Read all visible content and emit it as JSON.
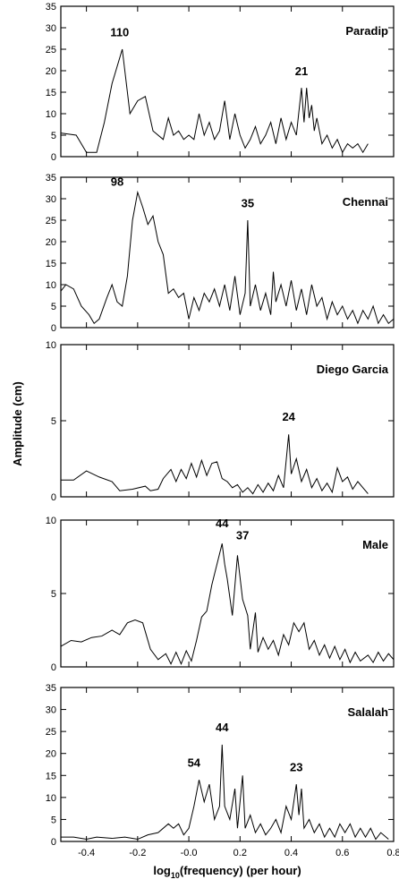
{
  "chart_data": [
    {
      "type": "line",
      "title": "Paradip",
      "color": "#000000",
      "xlim": [
        -0.5,
        0.8
      ],
      "ylim": [
        0,
        35
      ],
      "xticks": [
        -0.4,
        -0.2,
        0,
        0.2,
        0.4,
        0.6,
        0.8
      ],
      "yticks": [
        0,
        5,
        10,
        15,
        20,
        25,
        30,
        35
      ],
      "annotations": [
        {
          "text": "110",
          "x": -0.27,
          "y": 28
        },
        {
          "text": "21",
          "x": 0.44,
          "y": 19
        }
      ],
      "x": [
        -0.5,
        -0.44,
        -0.4,
        -0.36,
        -0.33,
        -0.3,
        -0.26,
        -0.23,
        -0.2,
        -0.17,
        -0.14,
        -0.1,
        -0.08,
        -0.06,
        -0.04,
        -0.02,
        0,
        0.02,
        0.04,
        0.06,
        0.08,
        0.1,
        0.12,
        0.14,
        0.16,
        0.18,
        0.2,
        0.22,
        0.24,
        0.26,
        0.28,
        0.3,
        0.32,
        0.34,
        0.36,
        0.38,
        0.4,
        0.42,
        0.44,
        0.45,
        0.46,
        0.47,
        0.48,
        0.49,
        0.5,
        0.52,
        0.54,
        0.56,
        0.58,
        0.6,
        0.62,
        0.64,
        0.66,
        0.68,
        0.7
      ],
      "values": [
        5.5,
        5,
        1,
        1,
        8,
        17,
        25,
        10,
        13,
        14,
        6,
        4,
        9,
        5,
        6,
        4,
        5,
        4,
        10,
        5,
        8,
        4,
        6,
        13,
        4,
        10,
        5,
        2,
        4,
        7,
        3,
        5,
        8,
        3,
        9,
        4,
        8,
        5,
        16,
        8,
        16,
        9,
        12,
        6,
        9,
        3,
        5,
        2,
        4,
        1,
        3,
        2,
        3,
        1,
        3
      ]
    },
    {
      "type": "line",
      "title": "Chennai",
      "color": "#000000",
      "xlim": [
        -0.5,
        0.8
      ],
      "ylim": [
        0,
        35
      ],
      "xticks": [
        -0.4,
        -0.2,
        0,
        0.2,
        0.4,
        0.6,
        0.8
      ],
      "yticks": [
        0,
        5,
        10,
        15,
        20,
        25,
        30,
        35
      ],
      "annotations": [
        {
          "text": "98",
          "x": -0.28,
          "y": 33
        },
        {
          "text": "35",
          "x": 0.23,
          "y": 28
        }
      ],
      "x": [
        -0.5,
        -0.48,
        -0.45,
        -0.42,
        -0.39,
        -0.37,
        -0.35,
        -0.32,
        -0.3,
        -0.28,
        -0.26,
        -0.24,
        -0.22,
        -0.2,
        -0.18,
        -0.16,
        -0.14,
        -0.12,
        -0.1,
        -0.08,
        -0.06,
        -0.04,
        -0.02,
        0,
        0.02,
        0.04,
        0.06,
        0.08,
        0.1,
        0.12,
        0.14,
        0.16,
        0.18,
        0.2,
        0.22,
        0.23,
        0.24,
        0.26,
        0.28,
        0.3,
        0.32,
        0.33,
        0.34,
        0.36,
        0.38,
        0.4,
        0.42,
        0.44,
        0.46,
        0.48,
        0.5,
        0.52,
        0.54,
        0.56,
        0.58,
        0.6,
        0.62,
        0.64,
        0.66,
        0.68,
        0.7,
        0.72,
        0.74,
        0.76,
        0.78,
        0.8
      ],
      "values": [
        8.5,
        10,
        9,
        5,
        3,
        1,
        2,
        7,
        10,
        6,
        5,
        12,
        25,
        31.5,
        28,
        24,
        26,
        20,
        17,
        8,
        9,
        7,
        8,
        2,
        7,
        4,
        8,
        6,
        9,
        5,
        10,
        4,
        12,
        3,
        8,
        25,
        5,
        10,
        4,
        8,
        3,
        13,
        6,
        10,
        5,
        11,
        4,
        9,
        3,
        10,
        5,
        7,
        2,
        6,
        3,
        5,
        2,
        4,
        1,
        4,
        2,
        5,
        1,
        3,
        1,
        2
      ]
    },
    {
      "type": "line",
      "title": "Diego Garcia",
      "color": "#000000",
      "ylabel": "Amplitude (cm)",
      "xlim": [
        -0.5,
        0.8
      ],
      "ylim": [
        0,
        10
      ],
      "xticks": [
        -0.4,
        -0.2,
        0,
        0.2,
        0.4,
        0.6,
        0.8
      ],
      "yticks": [
        0,
        5,
        10
      ],
      "annotations": [
        {
          "text": "24",
          "x": 0.39,
          "y": 5
        }
      ],
      "x": [
        -0.5,
        -0.45,
        -0.4,
        -0.35,
        -0.3,
        -0.27,
        -0.22,
        -0.17,
        -0.15,
        -0.12,
        -0.1,
        -0.07,
        -0.05,
        -0.03,
        -0.01,
        0.01,
        0.03,
        0.05,
        0.07,
        0.09,
        0.11,
        0.13,
        0.15,
        0.17,
        0.19,
        0.21,
        0.23,
        0.25,
        0.27,
        0.29,
        0.31,
        0.33,
        0.35,
        0.37,
        0.39,
        0.4,
        0.42,
        0.44,
        0.46,
        0.48,
        0.5,
        0.52,
        0.54,
        0.56,
        0.58,
        0.6,
        0.62,
        0.64,
        0.66,
        0.68,
        0.7
      ],
      "values": [
        1.1,
        1.1,
        1.7,
        1.3,
        1.0,
        0.4,
        0.5,
        0.7,
        0.4,
        0.5,
        1.2,
        1.8,
        1.0,
        1.8,
        1.2,
        2.2,
        1.3,
        2.4,
        1.4,
        2.2,
        2.3,
        1.2,
        1.0,
        0.6,
        0.8,
        0.3,
        0.6,
        0.2,
        0.8,
        0.3,
        0.9,
        0.4,
        1.4,
        0.6,
        4.1,
        1.5,
        2.5,
        1.0,
        1.8,
        0.6,
        1.2,
        0.4,
        0.9,
        0.3,
        1.9,
        1.0,
        1.3,
        0.5,
        1.0,
        0.6,
        0.2
      ]
    },
    {
      "type": "line",
      "title": "Male",
      "color": "#000000",
      "xlim": [
        -0.5,
        0.8
      ],
      "ylim": [
        0,
        10
      ],
      "xticks": [
        -0.4,
        -0.2,
        0,
        0.2,
        0.4,
        0.6,
        0.8
      ],
      "yticks": [
        0,
        5,
        10
      ],
      "annotations": [
        {
          "text": "44",
          "x": 0.13,
          "y": 9.5
        },
        {
          "text": "37",
          "x": 0.21,
          "y": 8.7
        }
      ],
      "x": [
        -0.5,
        -0.46,
        -0.42,
        -0.38,
        -0.34,
        -0.3,
        -0.27,
        -0.24,
        -0.21,
        -0.18,
        -0.15,
        -0.12,
        -0.09,
        -0.07,
        -0.05,
        -0.03,
        -0.01,
        0.01,
        0.03,
        0.05,
        0.07,
        0.09,
        0.11,
        0.13,
        0.14,
        0.15,
        0.17,
        0.19,
        0.21,
        0.23,
        0.24,
        0.26,
        0.27,
        0.29,
        0.31,
        0.33,
        0.35,
        0.37,
        0.39,
        0.41,
        0.43,
        0.45,
        0.47,
        0.49,
        0.51,
        0.53,
        0.55,
        0.57,
        0.59,
        0.61,
        0.63,
        0.65,
        0.67,
        0.7,
        0.72,
        0.74,
        0.76,
        0.78,
        0.8
      ],
      "values": [
        1.4,
        1.8,
        1.7,
        2.0,
        2.1,
        2.5,
        2.2,
        3.0,
        3.2,
        3.0,
        1.2,
        0.5,
        0.9,
        0.2,
        1.0,
        0.2,
        1.1,
        0.4,
        1.8,
        3.4,
        3.8,
        5.6,
        7.0,
        8.4,
        7.0,
        6.0,
        3.5,
        7.6,
        4.6,
        3.5,
        1.2,
        3.7,
        1.0,
        2.0,
        1.2,
        1.8,
        0.8,
        2.2,
        1.5,
        3.0,
        2.4,
        3.0,
        1.2,
        1.8,
        0.8,
        1.5,
        0.6,
        1.4,
        0.5,
        1.2,
        0.3,
        1.0,
        0.4,
        0.8,
        0.3,
        1.0,
        0.4,
        0.9,
        0.5
      ]
    },
    {
      "type": "line",
      "title": "Salalah",
      "color": "#000000",
      "xlabel": {
        "text": "log",
        "sub": "10",
        "rest": "(frequency) (per hour)"
      },
      "xlim": [
        -0.5,
        0.8
      ],
      "ylim": [
        0,
        35
      ],
      "xticks": [
        -0.4,
        -0.2,
        {
          "value": 0,
          "label": "-0.0"
        },
        0.2,
        0.4,
        0.6,
        0.8
      ],
      "yticks": [
        0,
        5,
        10,
        15,
        20,
        25,
        30,
        35
      ],
      "annotations": [
        {
          "text": "54",
          "x": 0.02,
          "y": 17
        },
        {
          "text": "44",
          "x": 0.13,
          "y": 25
        },
        {
          "text": "23",
          "x": 0.42,
          "y": 16
        }
      ],
      "x": [
        -0.5,
        -0.45,
        -0.4,
        -0.36,
        -0.3,
        -0.25,
        -0.2,
        -0.16,
        -0.12,
        -0.08,
        -0.06,
        -0.04,
        -0.02,
        0,
        0.02,
        0.04,
        0.06,
        0.08,
        0.1,
        0.12,
        0.13,
        0.14,
        0.16,
        0.18,
        0.19,
        0.21,
        0.22,
        0.24,
        0.26,
        0.28,
        0.3,
        0.32,
        0.34,
        0.36,
        0.38,
        0.4,
        0.42,
        0.43,
        0.44,
        0.45,
        0.47,
        0.49,
        0.51,
        0.53,
        0.55,
        0.57,
        0.59,
        0.61,
        0.63,
        0.65,
        0.67,
        0.69,
        0.71,
        0.73,
        0.75,
        0.78
      ],
      "values": [
        1,
        1,
        0.5,
        1,
        0.7,
        1,
        0.5,
        1.5,
        2,
        4,
        3,
        4,
        1.5,
        3,
        8,
        14,
        9,
        13,
        5,
        8,
        22,
        8,
        5,
        12,
        3,
        15,
        3,
        6,
        2,
        4,
        1.5,
        3,
        5,
        2,
        8,
        5,
        13,
        6,
        12,
        3,
        5,
        2,
        4,
        1,
        3,
        1,
        4,
        2,
        4,
        1,
        3,
        1,
        3,
        0.5,
        2,
        0.5
      ]
    }
  ]
}
